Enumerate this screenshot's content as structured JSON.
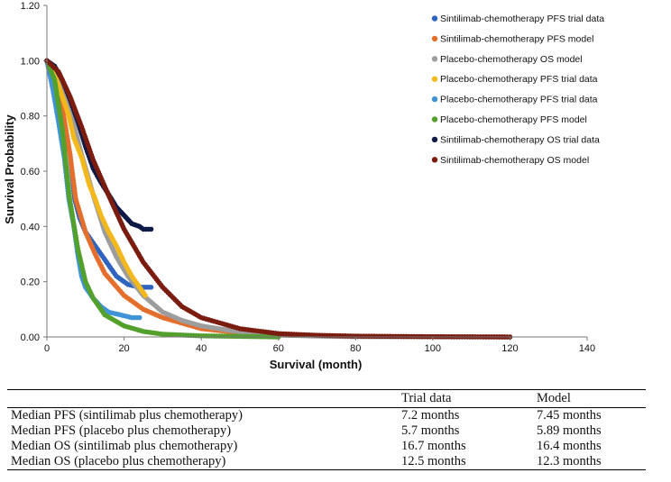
{
  "chart_data": {
    "type": "scatter",
    "title": "",
    "xlabel": "Survival (month)",
    "ylabel": "Survival Probability",
    "xlim": [
      0,
      140
    ],
    "ylim": [
      0,
      1.2
    ],
    "x_ticks": [
      "0",
      "20",
      "40",
      "60",
      "80",
      "100",
      "120",
      "140"
    ],
    "y_ticks": [
      "0.00",
      "0.20",
      "0.40",
      "0.60",
      "0.80",
      "1.00",
      "1.20"
    ],
    "grid": false,
    "legend_position": "top-right",
    "series": [
      {
        "name": "Sintilimab-chemotherapy PFS trial data",
        "color": "#2e64c0",
        "points": [
          [
            0,
            1.0
          ],
          [
            1.5,
            0.95
          ],
          [
            3,
            0.86
          ],
          [
            4.5,
            0.76
          ],
          [
            6,
            0.66
          ],
          [
            7.2,
            0.5
          ],
          [
            8.5,
            0.43
          ],
          [
            10,
            0.38
          ],
          [
            12,
            0.34
          ],
          [
            14,
            0.3
          ],
          [
            16,
            0.26
          ],
          [
            18,
            0.22
          ],
          [
            21,
            0.19
          ],
          [
            24,
            0.18
          ],
          [
            27,
            0.18
          ]
        ]
      },
      {
        "name": "Sintilimab-chemotherapy PFS model",
        "color": "#e46e2c",
        "points": [
          [
            0,
            1.0
          ],
          [
            2,
            0.96
          ],
          [
            4,
            0.83
          ],
          [
            6,
            0.66
          ],
          [
            7.45,
            0.5
          ],
          [
            10,
            0.38
          ],
          [
            12.5,
            0.3
          ],
          [
            15,
            0.23
          ],
          [
            20,
            0.15
          ],
          [
            25,
            0.1
          ],
          [
            30,
            0.07
          ],
          [
            40,
            0.03
          ],
          [
            50,
            0.015
          ],
          [
            60,
            0.007
          ],
          [
            80,
            0.002
          ],
          [
            100,
            0.001
          ],
          [
            120,
            0.0
          ]
        ]
      },
      {
        "name": "Placebo-chemotherapy OS model",
        "color": "#9d9d9d",
        "points": [
          [
            0,
            1.0
          ],
          [
            3,
            0.95
          ],
          [
            6,
            0.82
          ],
          [
            9,
            0.66
          ],
          [
            12.3,
            0.5
          ],
          [
            15,
            0.38
          ],
          [
            18,
            0.29
          ],
          [
            21,
            0.22
          ],
          [
            25,
            0.15
          ],
          [
            30,
            0.09
          ],
          [
            35,
            0.06
          ],
          [
            40,
            0.04
          ],
          [
            50,
            0.018
          ],
          [
            60,
            0.007
          ],
          [
            70,
            0.003
          ],
          [
            80,
            0.001
          ],
          [
            120,
            0.0
          ]
        ]
      },
      {
        "name": "Placebo-chemotherapy PFS trial data",
        "color": "#f3b91c",
        "points": [
          [
            0,
            1.0
          ],
          [
            2,
            0.95
          ],
          [
            4,
            0.87
          ],
          [
            5.7,
            0.8
          ],
          [
            7,
            0.72
          ],
          [
            9,
            0.65
          ],
          [
            11,
            0.55
          ],
          [
            12.5,
            0.5
          ],
          [
            14,
            0.44
          ],
          [
            16,
            0.38
          ],
          [
            18,
            0.33
          ],
          [
            20,
            0.27
          ],
          [
            22,
            0.22
          ],
          [
            24,
            0.18
          ],
          [
            25.5,
            0.15
          ]
        ]
      },
      {
        "name": "Placebo-chemotherapy PFS trial data",
        "color": "#3f93d6",
        "points": [
          [
            0,
            1.0
          ],
          [
            1.5,
            0.9
          ],
          [
            3,
            0.78
          ],
          [
            4.5,
            0.65
          ],
          [
            5.7,
            0.5
          ],
          [
            7,
            0.4
          ],
          [
            8,
            0.3
          ],
          [
            9,
            0.22
          ],
          [
            10,
            0.18
          ],
          [
            12,
            0.14
          ],
          [
            14,
            0.11
          ],
          [
            16,
            0.09
          ],
          [
            19,
            0.08
          ],
          [
            22,
            0.07
          ],
          [
            24,
            0.07
          ]
        ]
      },
      {
        "name": "Placebo-chemotherapy PFS model",
        "color": "#53a02d",
        "points": [
          [
            0,
            1.0
          ],
          [
            2,
            0.93
          ],
          [
            4,
            0.75
          ],
          [
            5.89,
            0.5
          ],
          [
            8,
            0.32
          ],
          [
            10,
            0.2
          ],
          [
            12,
            0.14
          ],
          [
            15,
            0.08
          ],
          [
            20,
            0.04
          ],
          [
            25,
            0.02
          ],
          [
            30,
            0.01
          ],
          [
            40,
            0.004
          ],
          [
            50,
            0.002
          ],
          [
            60,
            0.0
          ]
        ]
      },
      {
        "name": "Sintilimab-chemotherapy OS trial data",
        "color": "#0e1a46",
        "points": [
          [
            0,
            1.0
          ],
          [
            2,
            0.98
          ],
          [
            4,
            0.93
          ],
          [
            6,
            0.86
          ],
          [
            8,
            0.78
          ],
          [
            10,
            0.69
          ],
          [
            12,
            0.61
          ],
          [
            14,
            0.56
          ],
          [
            16.7,
            0.5
          ],
          [
            18,
            0.47
          ],
          [
            20,
            0.44
          ],
          [
            22,
            0.41
          ],
          [
            24,
            0.4
          ],
          [
            25,
            0.39
          ],
          [
            27,
            0.39
          ]
        ]
      },
      {
        "name": "Sintilimab-chemotherapy OS model",
        "color": "#7a1c10",
        "points": [
          [
            0,
            1.0
          ],
          [
            3,
            0.96
          ],
          [
            6,
            0.87
          ],
          [
            9,
            0.76
          ],
          [
            12,
            0.64
          ],
          [
            16.4,
            0.5
          ],
          [
            20,
            0.39
          ],
          [
            25,
            0.27
          ],
          [
            30,
            0.18
          ],
          [
            35,
            0.11
          ],
          [
            40,
            0.07
          ],
          [
            50,
            0.03
          ],
          [
            60,
            0.012
          ],
          [
            70,
            0.006
          ],
          [
            80,
            0.003
          ],
          [
            100,
            0.001
          ],
          [
            120,
            0.0
          ]
        ]
      }
    ]
  },
  "table": {
    "headers": [
      "",
      "Trial data",
      "Model"
    ],
    "rows": [
      [
        "Median PFS (sintilimab plus chemotherapy)",
        "7.2 months",
        "7.45 months"
      ],
      [
        "Median PFS (placebo plus chemotherapy)",
        "5.7 months",
        "5.89 months"
      ],
      [
        "Median OS (sintilimab plus chemotherapy)",
        "16.7 months",
        "16.4 months"
      ],
      [
        "Median OS (placebo plus chemotherapy)",
        "12.5 months",
        "12.3 months"
      ]
    ]
  }
}
